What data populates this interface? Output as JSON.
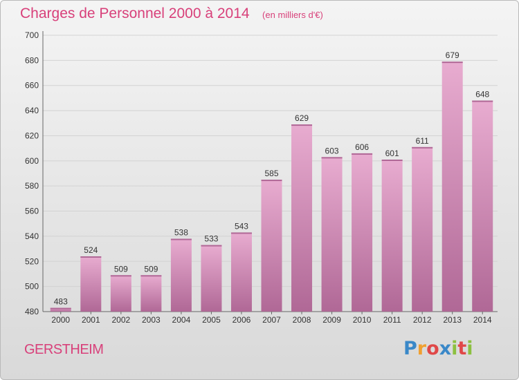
{
  "header": {
    "title": "Charges de Personnel 2000 à 2014",
    "unit": "(en milliers d'€)"
  },
  "footer": {
    "place": "GERSTHEIM",
    "brand": "Proxiti",
    "brand_letters": [
      {
        "ch": "P",
        "color": "#3a88c8"
      },
      {
        "ch": "r",
        "color": "#f0a030"
      },
      {
        "ch": "o",
        "color": "#e04848"
      },
      {
        "ch": "x",
        "color": "#3a88c8"
      },
      {
        "ch": "i",
        "color": "#8cc040"
      },
      {
        "ch": "t",
        "color": "#e04848"
      },
      {
        "ch": "i",
        "color": "#8cc040"
      }
    ]
  },
  "colors": {
    "accent": "#d8407a",
    "bar_top": "#e8acd0",
    "bar_bottom": "#b06896",
    "grid": "#d2d2d2"
  },
  "chart_data": {
    "type": "bar",
    "title": "Charges de Personnel 2000 à 2014",
    "subtitle": "(en milliers d'€)",
    "categories": [
      "2000",
      "2001",
      "2002",
      "2003",
      "2004",
      "2005",
      "2006",
      "2007",
      "2008",
      "2009",
      "2010",
      "2011",
      "2012",
      "2013",
      "2014"
    ],
    "values": [
      483,
      524,
      509,
      509,
      538,
      533,
      543,
      585,
      629,
      603,
      606,
      601,
      611,
      679,
      648
    ],
    "ylim": [
      480,
      700
    ],
    "yticks": [
      480,
      500,
      520,
      540,
      560,
      580,
      600,
      620,
      640,
      660,
      680,
      700
    ],
    "grid": true,
    "xlabel": "",
    "ylabel": ""
  }
}
